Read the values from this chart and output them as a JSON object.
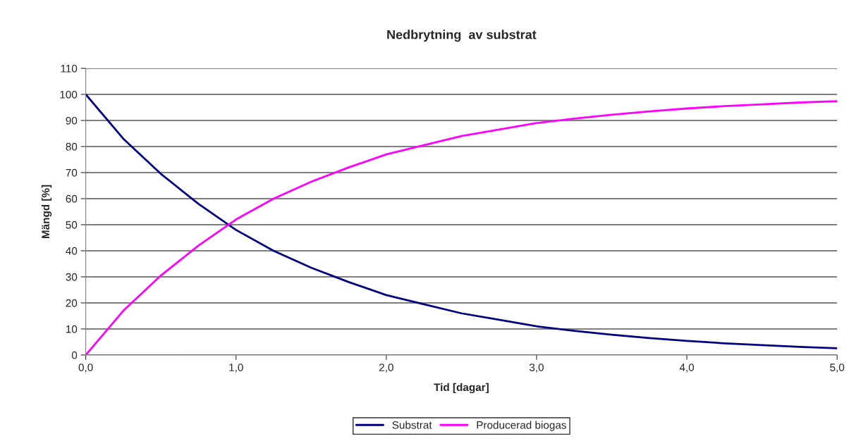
{
  "chart_data": {
    "type": "line",
    "title": "Nedbrytning  av substrat",
    "xlabel": "Tid [dagar]",
    "ylabel": "Mängd [%]",
    "x": [
      0,
      0.25,
      0.5,
      0.75,
      1.0,
      1.25,
      1.5,
      1.75,
      2.0,
      2.25,
      2.5,
      2.75,
      3.0,
      3.25,
      3.5,
      3.75,
      4.0,
      4.25,
      4.5,
      4.75,
      5.0
    ],
    "series": [
      {
        "name": "Substrat",
        "color": "#000080",
        "values": [
          100,
          83,
          69.5,
          58,
          48,
          40,
          33.5,
          28,
          23,
          19.5,
          16,
          13.5,
          11,
          9.3,
          7.8,
          6.5,
          5.4,
          4.5,
          3.8,
          3.1,
          2.6
        ]
      },
      {
        "name": "Producerad biogas",
        "color": "#ff00ff",
        "values": [
          0,
          17,
          30.5,
          42,
          52,
          60,
          66.5,
          72,
          77,
          80.5,
          84,
          86.5,
          89,
          90.7,
          92.2,
          93.5,
          94.6,
          95.5,
          96.2,
          96.9,
          97.4
        ]
      }
    ],
    "xlim": [
      0,
      5
    ],
    "xticks": [
      {
        "value": 0,
        "label": "0,0"
      },
      {
        "value": 1,
        "label": "1,0"
      },
      {
        "value": 2,
        "label": "2,0"
      },
      {
        "value": 3,
        "label": "3,0"
      },
      {
        "value": 4,
        "label": "4,0"
      },
      {
        "value": 5,
        "label": "5,0"
      }
    ],
    "ylim": [
      0,
      110
    ],
    "yticks": [
      0,
      10,
      20,
      30,
      40,
      50,
      60,
      70,
      80,
      90,
      100,
      110
    ],
    "grid": "y",
    "legend": "bottom",
    "marker": "none",
    "line_style": "solid"
  }
}
